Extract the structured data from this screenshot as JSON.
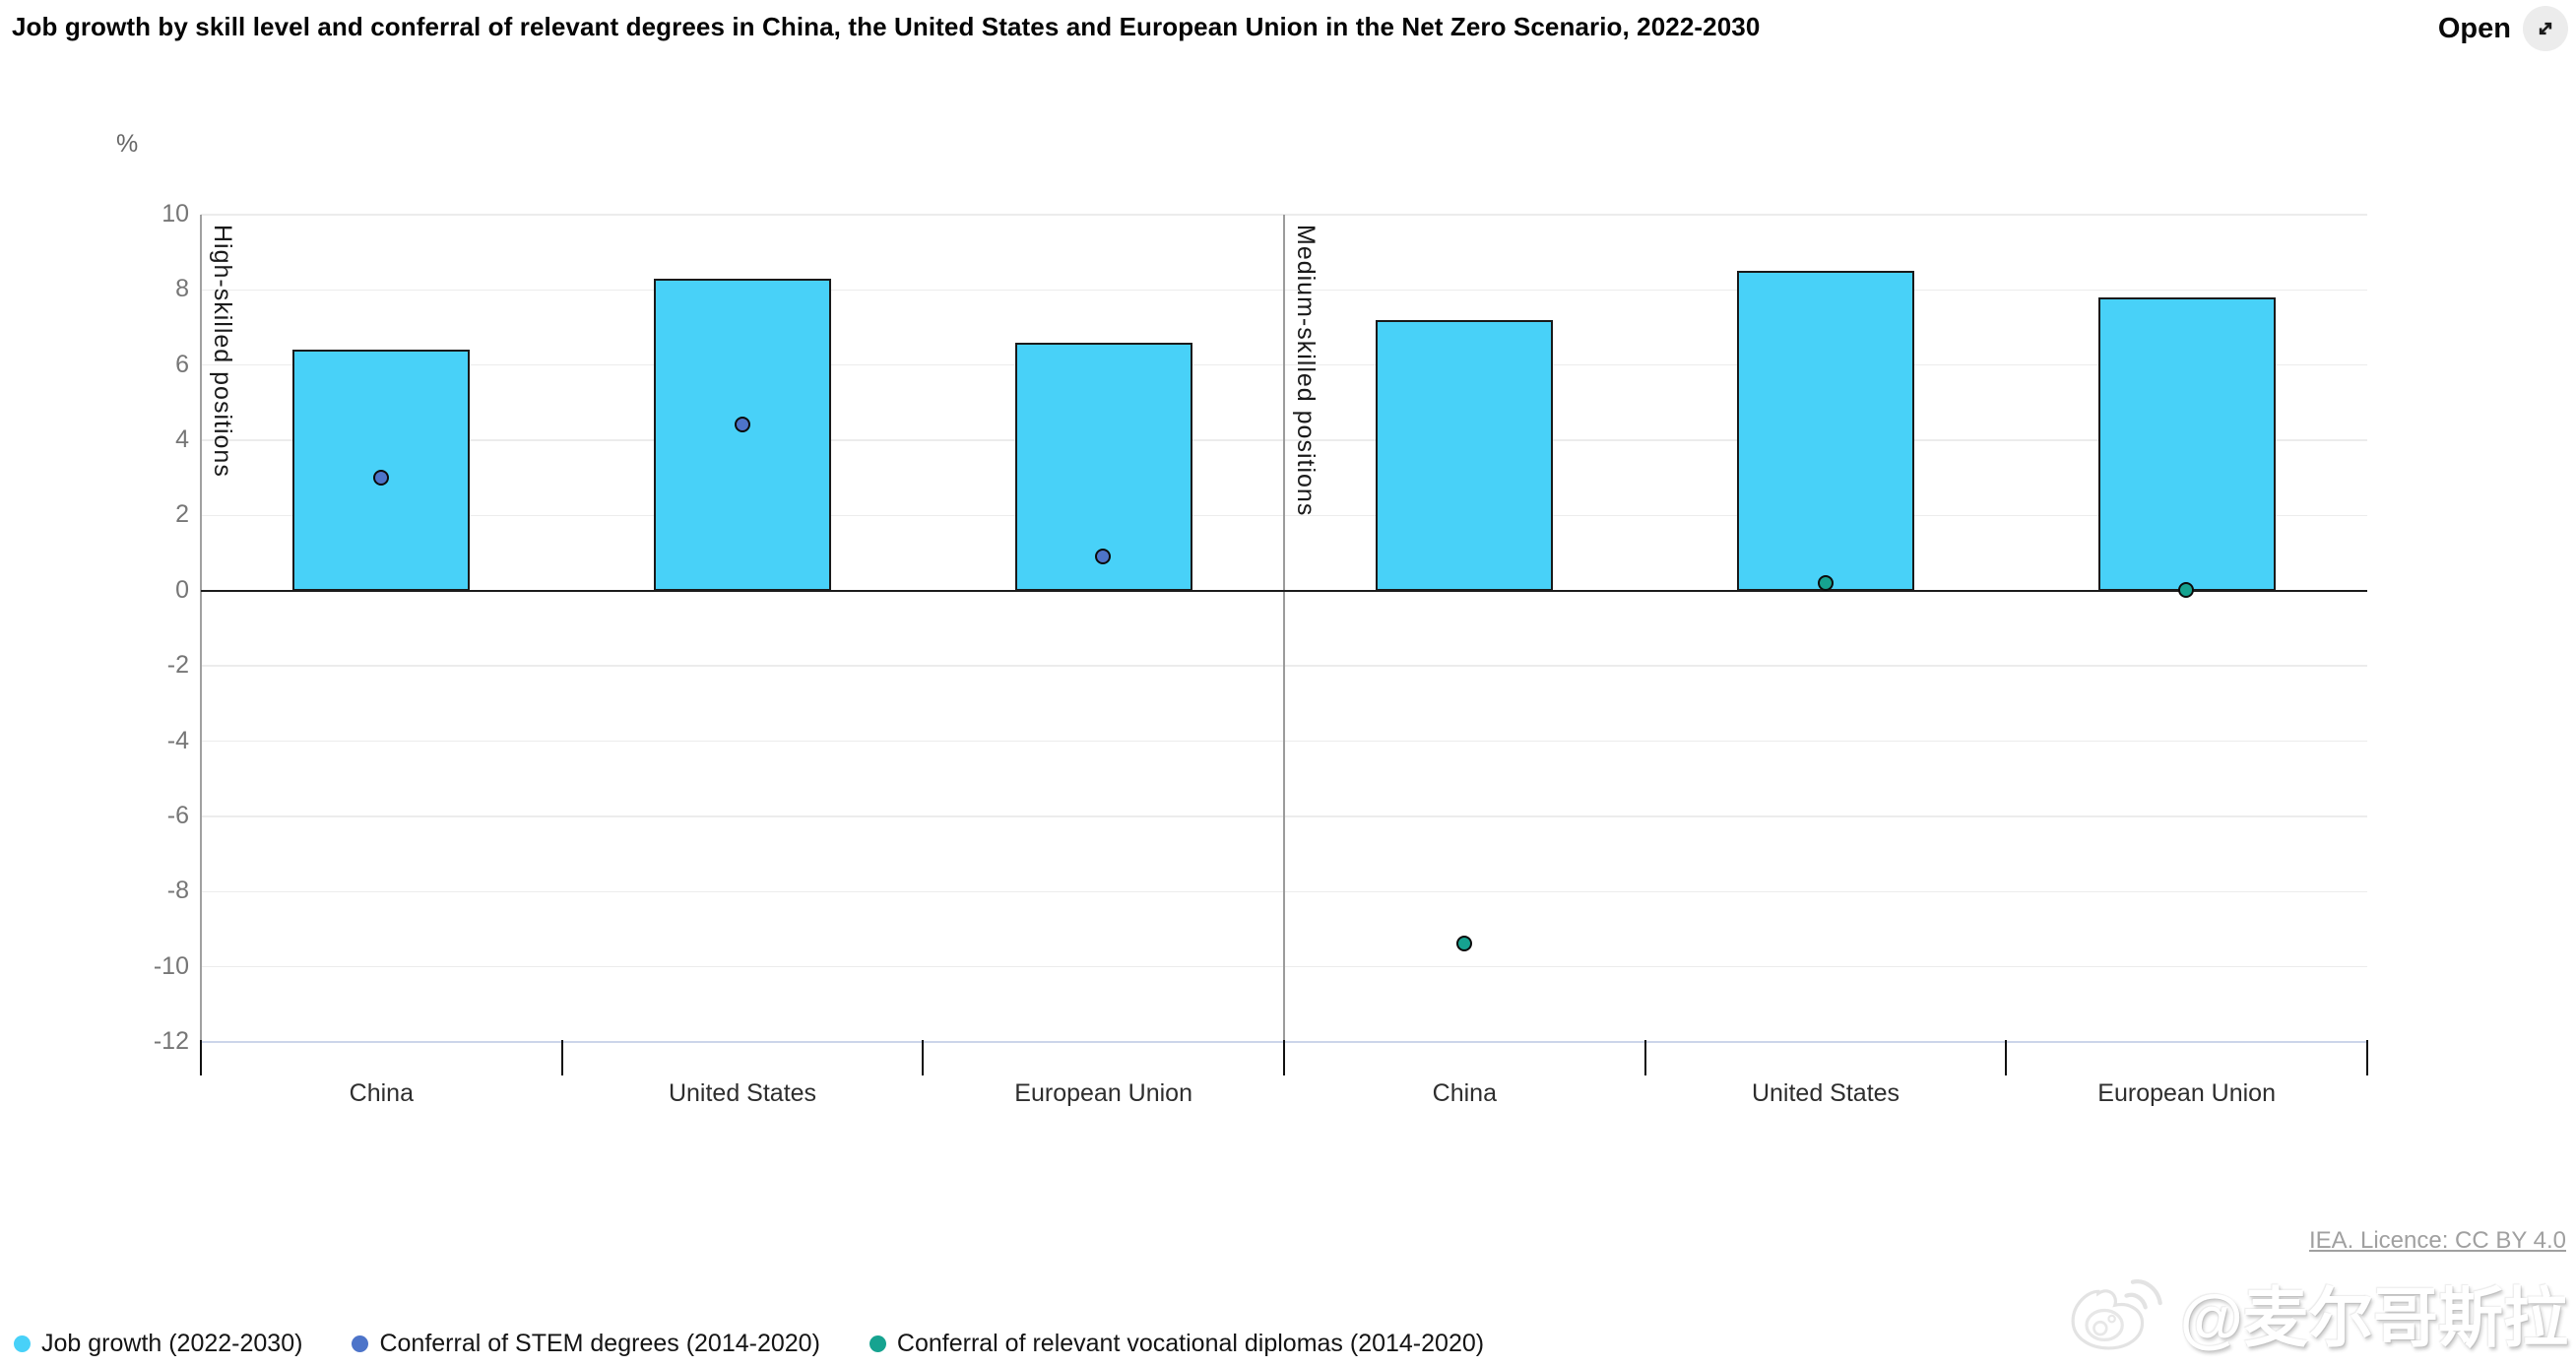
{
  "header": {
    "title": "Job growth by skill level and conferral of relevant degrees in China, the United States and European Union in the Net Zero Scenario, 2022-2030",
    "open_label": "Open"
  },
  "chart_data": {
    "type": "bar",
    "unit_label": "%",
    "ylim": [
      -12,
      10
    ],
    "ytick_step": 2,
    "grid": true,
    "legend_position": "bottom-left",
    "panels": [
      {
        "label": "High-skilled positions",
        "categories": [
          "China",
          "United States",
          "European Union"
        ],
        "series": [
          {
            "name": "Job growth (2022-2030)",
            "type": "bar",
            "color": "#48d1f8",
            "values": [
              6.4,
              8.3,
              6.6
            ]
          },
          {
            "name": "Conferral of STEM degrees (2014-2020)",
            "type": "point",
            "color": "#4d74c9",
            "values": [
              3.0,
              4.4,
              0.9
            ]
          }
        ]
      },
      {
        "label": "Medium-skilled positions",
        "categories": [
          "China",
          "United States",
          "European Union"
        ],
        "series": [
          {
            "name": "Job growth (2022-2030)",
            "type": "bar",
            "color": "#48d1f8",
            "values": [
              7.2,
              8.5,
              7.8
            ]
          },
          {
            "name": "Conferral of relevant vocational diplomas (2014-2020)",
            "type": "point",
            "color": "#16a390",
            "values": [
              -9.4,
              0.2,
              0.0
            ]
          }
        ]
      }
    ],
    "legend": [
      {
        "label": "Job growth (2022-2030)",
        "color": "#48d1f8"
      },
      {
        "label": "Conferral of STEM degrees (2014-2020)",
        "color": "#4d74c9"
      },
      {
        "label": "Conferral of relevant vocational diplomas (2014-2020)",
        "color": "#16a390"
      }
    ],
    "colors": {
      "bar": "#48d1f8",
      "stem_point": "#4d74c9",
      "vocational_point": "#16a390",
      "zero_line": "#1c1c1c"
    }
  },
  "footer": {
    "licence": "IEA. Licence: CC BY 4.0",
    "watermark": "@麦尔哥斯拉"
  }
}
